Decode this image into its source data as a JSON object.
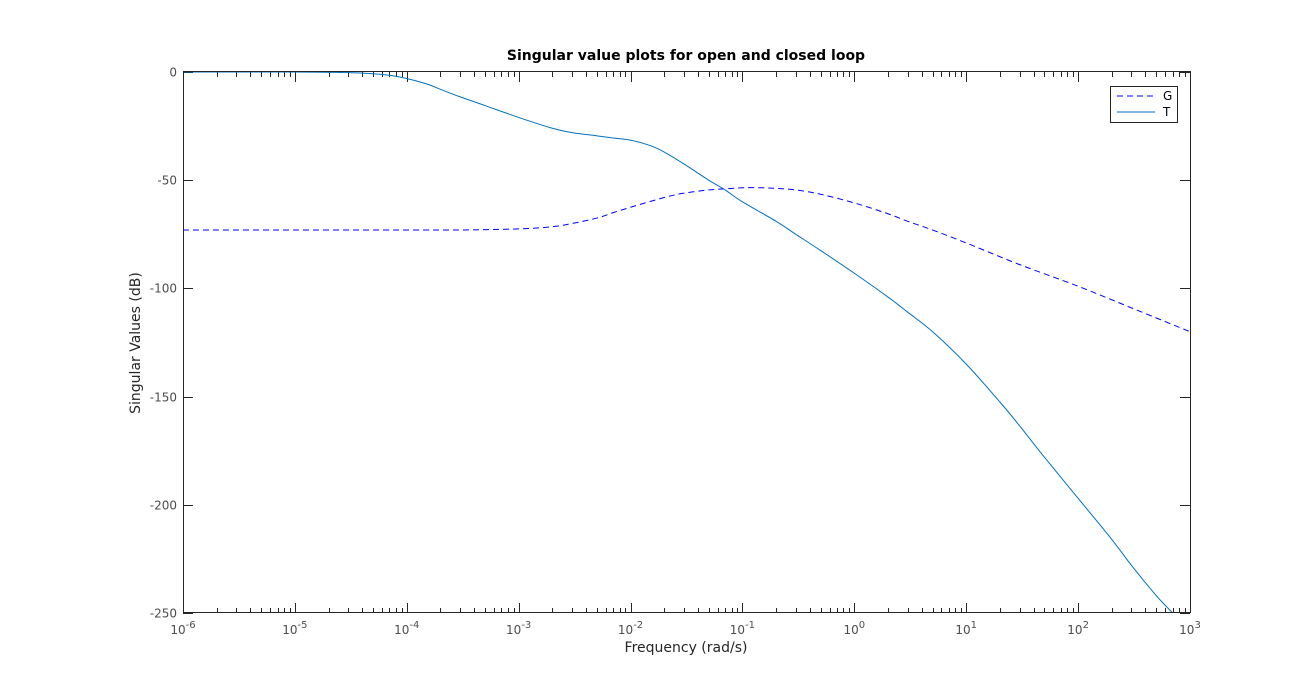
{
  "chart_data": {
    "type": "line",
    "title": "Singular value plots for open and closed loop",
    "xlabel": "Frequency (rad/s)",
    "ylabel": "Singular Values (dB)",
    "xscale": "log",
    "xlim": [
      1e-06,
      1000
    ],
    "ylim": [
      -250,
      0
    ],
    "x_ticks": [
      {
        "base": "10",
        "exp": "-6",
        "value": 1e-06
      },
      {
        "base": "10",
        "exp": "-5",
        "value": 1e-05
      },
      {
        "base": "10",
        "exp": "-4",
        "value": 0.0001
      },
      {
        "base": "10",
        "exp": "-3",
        "value": 0.001
      },
      {
        "base": "10",
        "exp": "-2",
        "value": 0.01
      },
      {
        "base": "10",
        "exp": "-1",
        "value": 0.1
      },
      {
        "base": "10",
        "exp": "0",
        "value": 1
      },
      {
        "base": "10",
        "exp": "1",
        "value": 10
      },
      {
        "base": "10",
        "exp": "2",
        "value": 100
      },
      {
        "base": "10",
        "exp": "3",
        "value": 1000
      }
    ],
    "y_ticks": [
      {
        "label": "0",
        "value": 0
      },
      {
        "label": "-50",
        "value": -50
      },
      {
        "label": "-100",
        "value": -100
      },
      {
        "label": "-150",
        "value": -150
      },
      {
        "label": "-200",
        "value": -200
      },
      {
        "label": "-250",
        "value": -250
      }
    ],
    "grid": false,
    "legend_position": "top-right",
    "series": [
      {
        "name": "G",
        "color": "#0000ff",
        "style": "dashed",
        "x": [
          1e-06,
          1e-05,
          0.0001,
          0.0003,
          0.001,
          0.002,
          0.003,
          0.005,
          0.007,
          0.01,
          0.02,
          0.03,
          0.05,
          0.07,
          0.1,
          0.15,
          0.2,
          0.3,
          0.5,
          1,
          2,
          3,
          5,
          10,
          30,
          100,
          300,
          1000
        ],
        "y": [
          -73,
          -73,
          -73,
          -73,
          -72.5,
          -71.5,
          -70,
          -67.5,
          -65,
          -62.5,
          -58,
          -56,
          -54.5,
          -54,
          -53.5,
          -53.5,
          -53.8,
          -54.5,
          -56.5,
          -60.5,
          -65.5,
          -69,
          -73,
          -79,
          -89,
          -99,
          -109,
          -120
        ]
      },
      {
        "name": "T",
        "color": "#0072bd",
        "style": "solid",
        "x": [
          1e-06,
          1e-05,
          3e-05,
          5e-05,
          7e-05,
          0.0001,
          0.00015,
          0.0002,
          0.0003,
          0.0005,
          0.001,
          0.002,
          0.003,
          0.005,
          0.007,
          0.01,
          0.015,
          0.02,
          0.03,
          0.05,
          0.07,
          0.1,
          0.2,
          0.3,
          0.5,
          1,
          2,
          3,
          5,
          10,
          20,
          30,
          50,
          100,
          200,
          300,
          500,
          700
        ],
        "y": [
          0,
          0,
          -0.3,
          -0.8,
          -1.5,
          -3,
          -5.5,
          -8,
          -11.5,
          -15.5,
          -21,
          -26,
          -28,
          -29.5,
          -30.5,
          -31.5,
          -34,
          -37,
          -42.5,
          -50,
          -54.5,
          -60,
          -69,
          -75,
          -82.5,
          -93,
          -104,
          -111,
          -120,
          -135,
          -152.5,
          -163.5,
          -178,
          -197,
          -216,
          -228,
          -242,
          -250
        ]
      }
    ]
  }
}
